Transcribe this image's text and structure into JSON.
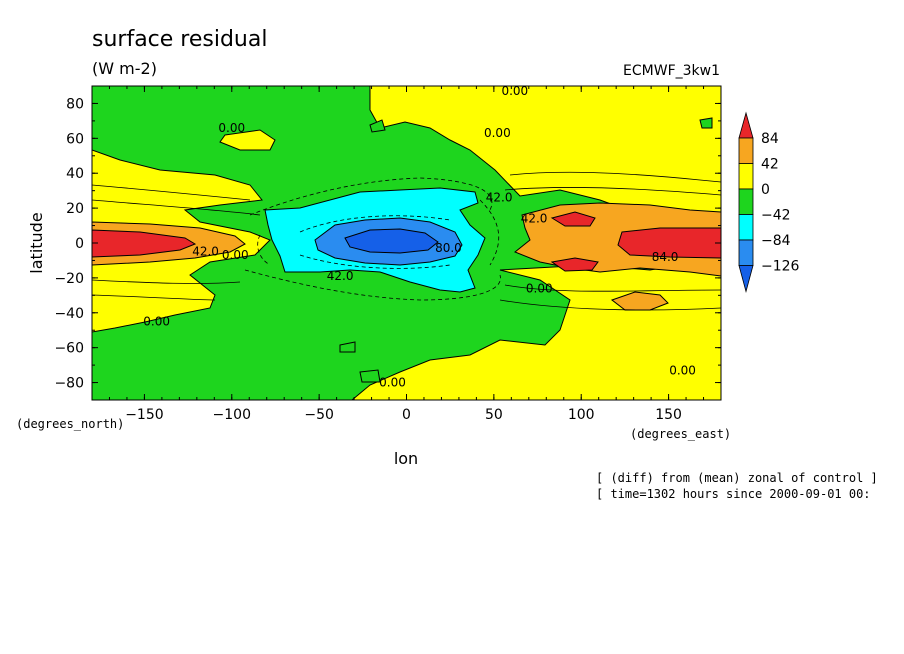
{
  "chart_data": {
    "type": "heatmap",
    "title": "surface residual",
    "subtitle": "(W m-2)",
    "model_label": "ECMWF_3kw1",
    "xlabel": "lon",
    "ylabel": "latitude",
    "x_unit_label": "(degrees_east)",
    "y_unit_label": "(degrees_north)",
    "xlim": [
      -180,
      180
    ],
    "ylim": [
      -90,
      90
    ],
    "x_ticks": [
      -150,
      -100,
      -50,
      0,
      50,
      100,
      150
    ],
    "x_tick_labels": [
      "−150",
      "−100",
      "−50",
      "0",
      "50",
      "100",
      "150"
    ],
    "y_ticks": [
      80,
      60,
      40,
      20,
      0,
      -20,
      -40,
      -60,
      -80
    ],
    "y_tick_labels": [
      "80",
      "60",
      "40",
      "20",
      "0",
      "−20",
      "−40",
      "−60",
      "−80"
    ],
    "colorbar": {
      "levels": [
        84,
        42,
        0,
        -42,
        -84,
        -126
      ],
      "labels": [
        "84",
        "42",
        "0",
        "−42",
        "−84",
        "−126"
      ],
      "colors": [
        "#e8262a",
        "#f7a620",
        "#ffff00",
        "#1ed51e",
        "#00ffff",
        "#2a8cf0",
        "#1560e8"
      ]
    },
    "contour_labels": [
      {
        "text": "0.00",
        "lon": 62,
        "lat": 87
      },
      {
        "text": "0.00",
        "lon": -100,
        "lat": 66
      },
      {
        "text": "0.00",
        "lon": 52,
        "lat": 63
      },
      {
        "text": "42.0",
        "lon": 53,
        "lat": 26
      },
      {
        "text": "42.0",
        "lon": 73,
        "lat": 14
      },
      {
        "text": "42.0",
        "lon": -115,
        "lat": -5
      },
      {
        "text": "0.00",
        "lon": -98,
        "lat": -7
      },
      {
        "text": "80.0",
        "lon": 24,
        "lat": -3
      },
      {
        "text": "84.0",
        "lon": 148,
        "lat": -8
      },
      {
        "text": "42.0",
        "lon": -38,
        "lat": -19
      },
      {
        "text": "0.00",
        "lon": 76,
        "lat": -26
      },
      {
        "text": "0.00",
        "lon": -143,
        "lat": -45
      },
      {
        "text": "0.00",
        "lon": 158,
        "lat": -73
      },
      {
        "text": "0.00",
        "lon": -8,
        "lat": -80
      }
    ]
  },
  "footnote_1": "[ (diff) from (mean) zonal of control ]",
  "footnote_2": "[ time=1302 hours since 2000-09-01 00:"
}
